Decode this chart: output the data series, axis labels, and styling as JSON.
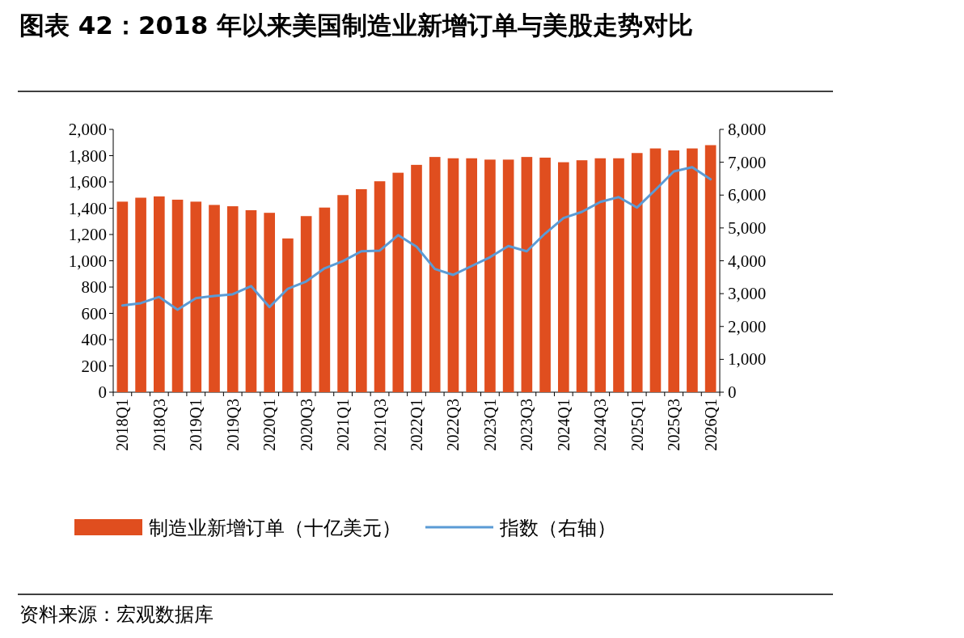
{
  "chart_data": {
    "type": "bar",
    "title": "图表 42：2018 年以来美国制造业新增订单与美股走势对比",
    "categories": [
      "2018Q1",
      null,
      "2018Q3",
      null,
      "2019Q1",
      null,
      "2019Q3",
      null,
      "2020Q1",
      null,
      "2020Q3",
      null,
      "2021Q1",
      null,
      "2021Q3",
      null,
      "2022Q1",
      null,
      "2022Q3",
      null,
      "2023Q1",
      null,
      "2023Q3",
      null,
      "2024Q1",
      null,
      "2024Q3",
      null,
      "2025Q1",
      null,
      "2025Q3",
      null,
      "2026Q1"
    ],
    "series": [
      {
        "name": "制造业新增订单（十亿美元）",
        "color": "#e04e1f",
        "values": [
          1450,
          1480,
          1490,
          1465,
          1450,
          1425,
          1415,
          1385,
          1365,
          1170,
          1340,
          1405,
          1500,
          1545,
          1605,
          1670,
          1730,
          1790,
          1780,
          1780,
          1770,
          1770,
          1790,
          1785,
          1750,
          1765,
          1780,
          1780,
          1820,
          1855,
          1840,
          1855,
          1880
        ]
      },
      {
        "name": "指数（右轴）",
        "type": "line",
        "axis": "y2",
        "color": "#5b9bd5",
        "values": [
          2640,
          2710,
          2900,
          2510,
          2860,
          2930,
          2980,
          3230,
          2590,
          3150,
          3370,
          3770,
          3990,
          4290,
          4310,
          4780,
          4430,
          3750,
          3570,
          3840,
          4110,
          4450,
          4290,
          4830,
          5300,
          5490,
          5790,
          5940,
          5620,
          6160,
          6720,
          6850,
          6480
        ]
      }
    ],
    "ylim": [
      0,
      2000
    ],
    "yticks": [
      0,
      200,
      400,
      600,
      800,
      {
        "value": 1000,
        "label": "1,000"
      },
      {
        "value": 1200,
        "label": "1,200"
      },
      {
        "value": 1400,
        "label": "1,400"
      },
      {
        "value": 1600,
        "label": "1,600"
      },
      {
        "value": 1800,
        "label": "1,800"
      },
      {
        "value": 2000,
        "label": "2,000"
      }
    ],
    "y2lim": [
      0,
      8000
    ],
    "y2ticks": [
      0,
      {
        "value": 1000,
        "label": "1,000"
      },
      {
        "value": 2000,
        "label": "2,000"
      },
      {
        "value": 3000,
        "label": "3,000"
      },
      {
        "value": 4000,
        "label": "4,000"
      },
      {
        "value": 5000,
        "label": "5,000"
      },
      {
        "value": 6000,
        "label": "6,000"
      },
      {
        "value": 7000,
        "label": "7,000"
      },
      {
        "value": 8000,
        "label": "8,000"
      }
    ],
    "legend": "bottom",
    "grid": false,
    "annotations": [
      "资料来源：宏观数据库"
    ]
  }
}
